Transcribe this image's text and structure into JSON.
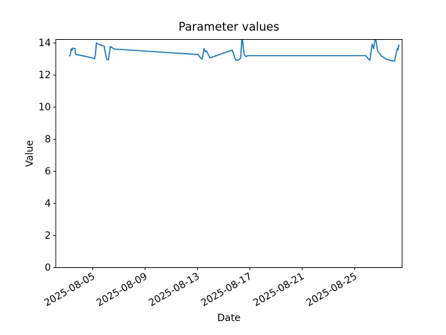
{
  "chart_data": {
    "type": "line",
    "title": "Parameter values",
    "xlabel": "Date",
    "ylabel": "Value",
    "grid": false,
    "legend": "none",
    "line_color": "#1f77b4",
    "axis_color": "#000000",
    "background_color": "#ffffff",
    "ylim": [
      0,
      14.22
    ],
    "yticks": [
      0,
      2,
      4,
      6,
      8,
      10,
      12,
      14
    ],
    "x_unit": "days_since_2025-08-01",
    "xlim_days": [
      1.18,
      27.62
    ],
    "xticks": [
      {
        "day": 4,
        "label": "2025-08-05"
      },
      {
        "day": 8,
        "label": "2025-08-09"
      },
      {
        "day": 12,
        "label": "2025-08-13"
      },
      {
        "day": 16,
        "label": "2025-08-17"
      },
      {
        "day": 20,
        "label": "2025-08-21"
      },
      {
        "day": 24,
        "label": "2025-08-25"
      }
    ],
    "series": [
      {
        "name": "parameter-values",
        "color": "#1f77b4",
        "points": [
          [
            2.23,
            13.2
          ],
          [
            2.3,
            13.28
          ],
          [
            2.36,
            13.63
          ],
          [
            2.42,
            13.55
          ],
          [
            2.5,
            13.68
          ],
          [
            2.65,
            13.65
          ],
          [
            2.7,
            13.28
          ],
          [
            3.0,
            13.24
          ],
          [
            3.9,
            13.08
          ],
          [
            4.15,
            13.02
          ],
          [
            4.22,
            13.35
          ],
          [
            4.28,
            14.0
          ],
          [
            4.5,
            13.9
          ],
          [
            4.88,
            13.8
          ],
          [
            5.0,
            13.25
          ],
          [
            5.08,
            12.97
          ],
          [
            5.2,
            12.95
          ],
          [
            5.35,
            13.78
          ],
          [
            5.5,
            13.7
          ],
          [
            5.65,
            13.62
          ],
          [
            12.05,
            13.28
          ],
          [
            12.25,
            13.05
          ],
          [
            12.35,
            13.0
          ],
          [
            12.5,
            13.65
          ],
          [
            12.6,
            13.45
          ],
          [
            12.7,
            13.5
          ],
          [
            12.95,
            13.07
          ],
          [
            14.65,
            13.56
          ],
          [
            14.9,
            12.95
          ],
          [
            15.1,
            12.92
          ],
          [
            15.3,
            13.05
          ],
          [
            15.4,
            14.45
          ],
          [
            15.55,
            13.35
          ],
          [
            15.68,
            13.15
          ],
          [
            15.85,
            13.21
          ],
          [
            24.85,
            13.21
          ],
          [
            25.05,
            13.0
          ],
          [
            25.16,
            12.93
          ],
          [
            25.33,
            13.92
          ],
          [
            25.45,
            13.65
          ],
          [
            25.58,
            14.4
          ],
          [
            25.75,
            13.5
          ],
          [
            26.05,
            13.18
          ],
          [
            26.4,
            13.0
          ],
          [
            26.8,
            12.9
          ],
          [
            27.05,
            12.87
          ],
          [
            27.18,
            13.4
          ],
          [
            27.27,
            13.67
          ],
          [
            27.31,
            13.57
          ],
          [
            27.37,
            13.87
          ]
        ]
      }
    ]
  }
}
